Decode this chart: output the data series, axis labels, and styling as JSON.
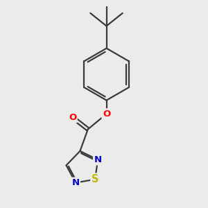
{
  "background_color": "#ebebeb",
  "bond_color": "#3a3a3a",
  "bond_width": 1.6,
  "atom_colors": {
    "O": "#ff0000",
    "N": "#0000cc",
    "S": "#bbbb00",
    "C": "#3a3a3a"
  },
  "font_size": 9.5,
  "xlim": [
    -2.8,
    3.2
  ],
  "ylim": [
    -4.2,
    4.2
  ]
}
